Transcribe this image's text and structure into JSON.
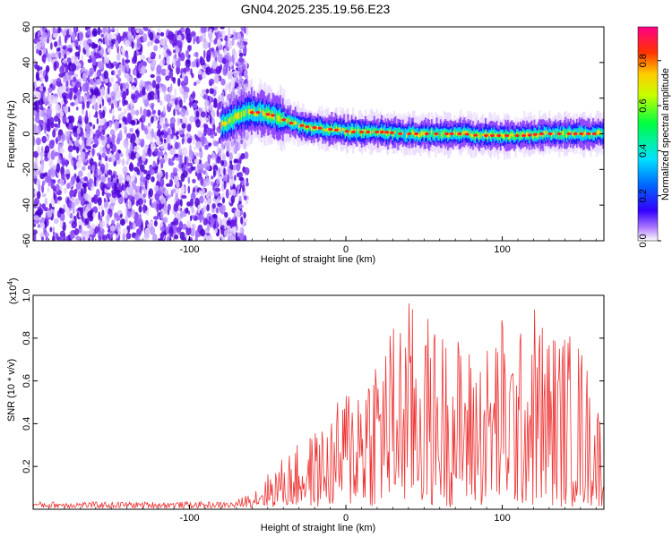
{
  "title": "GN04.2025.235.19.56.E23",
  "chart_data": [
    {
      "type": "heatmap",
      "title": "GN04.2025.235.19.56.E23",
      "xlabel": "Height of straight line (km)",
      "ylabel": "Frequency (Hz)",
      "xlim": [
        -200,
        165
      ],
      "ylim": [
        -60,
        60
      ],
      "x_ticks": [
        -100,
        0,
        100
      ],
      "y_ticks": [
        -60,
        -40,
        -20,
        0,
        20,
        40,
        60
      ],
      "x_tick_labels": [
        "-100",
        "0",
        "100"
      ],
      "y_tick_labels": [
        "-60",
        "-40",
        "-20",
        "0",
        "20",
        "40",
        "60"
      ],
      "noise_region_x": [
        -200,
        -63
      ],
      "signal_track": {
        "x": [
          -80,
          -70,
          -63,
          -55,
          -45,
          -35,
          -25,
          -15,
          -5,
          5,
          15,
          25,
          35,
          45,
          55,
          65,
          75,
          85,
          95,
          105,
          115,
          125,
          135,
          145,
          155,
          165
        ],
        "freq": [
          5,
          10,
          12,
          12,
          10,
          6,
          4,
          3,
          2,
          1,
          1,
          1,
          0,
          0,
          0,
          0,
          0,
          -1,
          -1,
          -1,
          -1,
          0,
          0,
          0,
          0,
          0
        ]
      },
      "colorbar": {
        "label": "Normalized spectral amplitude",
        "range": [
          0,
          0.95
        ],
        "ticks": [
          0,
          0.2,
          0.4,
          0.6,
          0.8
        ],
        "tick_labels": [
          "0.0",
          "0.2",
          "0.4",
          "0.6",
          "0.8"
        ],
        "colors": [
          "#ffffff",
          "#8a2be2",
          "#0000ff",
          "#00ffff",
          "#00ff00",
          "#ffff00",
          "#ff8000",
          "#ff0000",
          "#ff00ff"
        ]
      }
    },
    {
      "type": "line",
      "xlabel": "Height of straight line (km)",
      "ylabel": "SNR (10 * v/v)",
      "scale_label": "(x10",
      "scale_exponent": "4",
      "scale_suffix": ")",
      "xlim": [
        -200,
        165
      ],
      "ylim": [
        0,
        1.0
      ],
      "x_ticks": [
        -100,
        0,
        100
      ],
      "y_ticks": [
        0.2,
        0.4,
        0.6,
        0.8,
        1.0
      ],
      "x_tick_labels": [
        "-100",
        "0",
        "100"
      ],
      "y_tick_labels": [
        "0.2",
        "0.4",
        "0.6",
        "0.8",
        "1.0"
      ],
      "series": [
        {
          "name": "SNR",
          "color": "#ee3333",
          "envelope": {
            "x": [
              -200,
              -70,
              -60,
              -50,
              -40,
              -30,
              -20,
              -10,
              0,
              10,
              20,
              30,
              40,
              50,
              60,
              70,
              80,
              90,
              100,
              110,
              120,
              130,
              140,
              150,
              160,
              165
            ],
            "max": [
              0.03,
              0.03,
              0.08,
              0.16,
              0.24,
              0.3,
              0.36,
              0.42,
              0.58,
              0.7,
              0.8,
              0.88,
              0.98,
              0.92,
              0.85,
              0.82,
              0.76,
              0.78,
              0.92,
              0.8,
              0.98,
              0.86,
              0.84,
              0.8,
              0.52,
              0.48
            ]
          }
        }
      ]
    }
  ]
}
